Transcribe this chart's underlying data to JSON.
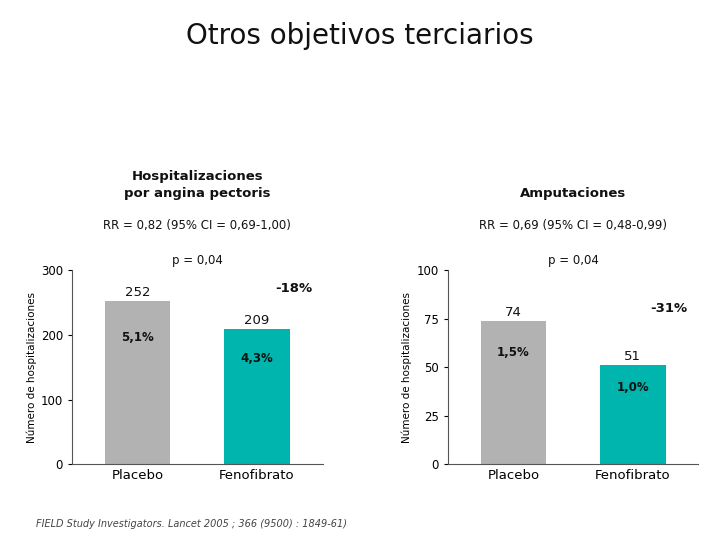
{
  "title": "Otros objetivos terciarios",
  "title_fontsize": 20,
  "background_color": "#ffffff",
  "left_chart": {
    "subtitle": "Hospitalizaciones\npor angina pectoris",
    "rr_text": "RR = 0,82 (95% CI = 0,69-1,00)",
    "p_text": "p = 0,04",
    "categories": [
      "Placebo",
      "Fenofibrato"
    ],
    "values": [
      252,
      209
    ],
    "pct_labels": [
      "5,1%",
      "4,3%"
    ],
    "reduction_label": "-18%",
    "bar_colors": [
      "#b2b2b2",
      "#00b5ad"
    ],
    "ylim": [
      0,
      300
    ],
    "yticks": [
      0,
      100,
      200,
      300
    ],
    "ylabel": "Número de hospitalizaciones"
  },
  "right_chart": {
    "subtitle": "Amputaciones",
    "rr_text": "RR = 0,69 (95% CI = 0,48-0,99)",
    "p_text": "p = 0,04",
    "categories": [
      "Placebo",
      "Fenofibrato"
    ],
    "values": [
      74,
      51
    ],
    "pct_labels": [
      "1,5%",
      "1,0%"
    ],
    "reduction_label": "-31%",
    "bar_colors": [
      "#b2b2b2",
      "#00b5ad"
    ],
    "ylim": [
      0,
      100
    ],
    "yticks": [
      0,
      25,
      50,
      75,
      100
    ],
    "ylabel": "Número de hospitalizaciones"
  },
  "footnote": "FIELD Study Investigators. Lancet 2005 ; 366 (9500) : 1849-61)"
}
